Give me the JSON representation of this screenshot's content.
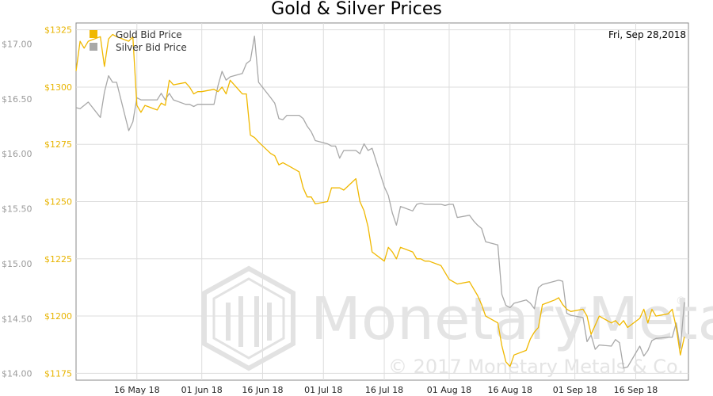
{
  "chart_data": {
    "type": "line",
    "title": "Gold & Silver Prices",
    "date_label": "Fri, Sep 28,2018",
    "x_ticks": [
      "16 May 18",
      "01 Jun 18",
      "16 Jun 18",
      "01 Jul 18",
      "16 Jul 18",
      "01 Aug 18",
      "16 Aug 18",
      "01 Sep 18",
      "16 Sep 18"
    ],
    "x_tick_dates": [
      "2018-05-16",
      "2018-06-01",
      "2018-06-16",
      "2018-07-01",
      "2018-07-16",
      "2018-08-01",
      "2018-08-16",
      "2018-09-01",
      "2018-09-16"
    ],
    "xlim": [
      "2018-05-01",
      "2018-09-29"
    ],
    "ylim_left": [
      1172,
      1328
    ],
    "ylim_right": [
      13.94,
      17.19
    ],
    "y_ticks_left": [
      "$1325",
      "$1300",
      "$1275",
      "$1250",
      "$1225",
      "$1200",
      "$1175"
    ],
    "y_tick_values_left": [
      1325,
      1300,
      1275,
      1250,
      1225,
      1200,
      1175
    ],
    "y_ticks_right": [
      "$17.00",
      "$16.50",
      "$16.00",
      "$15.50",
      "$15.00",
      "$14.50",
      "$14.00"
    ],
    "y_tick_values_right": [
      17.0,
      16.5,
      16.0,
      15.5,
      15.0,
      14.5,
      14.0
    ],
    "grid": true,
    "legend_position": "top-left",
    "watermark": {
      "text": "MonetaryMetals",
      "registered": "®",
      "copyright": "© 2017 Monetary Metals & Co."
    },
    "series": [
      {
        "name": "Gold Bid Price",
        "color": "#f0b800",
        "axis": "left",
        "x": [
          "2018-05-01",
          "2018-05-02",
          "2018-05-03",
          "2018-05-04",
          "2018-05-07",
          "2018-05-08",
          "2018-05-09",
          "2018-05-10",
          "2018-05-11",
          "2018-05-14",
          "2018-05-15",
          "2018-05-16",
          "2018-05-17",
          "2018-05-18",
          "2018-05-21",
          "2018-05-22",
          "2018-05-23",
          "2018-05-24",
          "2018-05-25",
          "2018-05-28",
          "2018-05-29",
          "2018-05-30",
          "2018-05-31",
          "2018-06-01",
          "2018-06-04",
          "2018-06-05",
          "2018-06-06",
          "2018-06-07",
          "2018-06-08",
          "2018-06-11",
          "2018-06-12",
          "2018-06-13",
          "2018-06-14",
          "2018-06-15",
          "2018-06-18",
          "2018-06-19",
          "2018-06-20",
          "2018-06-21",
          "2018-06-22",
          "2018-06-25",
          "2018-06-26",
          "2018-06-27",
          "2018-06-28",
          "2018-06-29",
          "2018-07-02",
          "2018-07-03",
          "2018-07-04",
          "2018-07-05",
          "2018-07-06",
          "2018-07-09",
          "2018-07-10",
          "2018-07-11",
          "2018-07-12",
          "2018-07-13",
          "2018-07-16",
          "2018-07-17",
          "2018-07-18",
          "2018-07-19",
          "2018-07-20",
          "2018-07-23",
          "2018-07-24",
          "2018-07-25",
          "2018-07-26",
          "2018-07-27",
          "2018-07-30",
          "2018-07-31",
          "2018-08-01",
          "2018-08-02",
          "2018-08-03",
          "2018-08-06",
          "2018-08-07",
          "2018-08-08",
          "2018-08-09",
          "2018-08-10",
          "2018-08-13",
          "2018-08-14",
          "2018-08-15",
          "2018-08-16",
          "2018-08-17",
          "2018-08-20",
          "2018-08-21",
          "2018-08-22",
          "2018-08-23",
          "2018-08-24",
          "2018-08-27",
          "2018-08-28",
          "2018-08-29",
          "2018-08-30",
          "2018-08-31",
          "2018-09-03",
          "2018-09-04",
          "2018-09-05",
          "2018-09-06",
          "2018-09-07",
          "2018-09-10",
          "2018-09-11",
          "2018-09-12",
          "2018-09-13",
          "2018-09-14",
          "2018-09-17",
          "2018-09-18",
          "2018-09-19",
          "2018-09-20",
          "2018-09-21",
          "2018-09-24",
          "2018-09-25",
          "2018-09-26",
          "2018-09-27",
          "2018-09-28"
        ],
        "values": [
          1307,
          1320,
          1317,
          1320,
          1322,
          1309,
          1321,
          1323,
          1322,
          1320,
          1322,
          1292,
          1289,
          1292,
          1290,
          1293,
          1292,
          1303,
          1301,
          1302,
          1300,
          1297,
          1298,
          1298,
          1299,
          1298,
          1300,
          1297,
          1303,
          1297,
          1297,
          1279,
          1278,
          1276,
          1271,
          1270,
          1266,
          1267,
          1266,
          1263,
          1256,
          1252,
          1252,
          1249,
          1250,
          1256,
          1256,
          1256,
          1255,
          1260,
          1250,
          1246,
          1239,
          1228,
          1224,
          1230,
          1228,
          1225,
          1230,
          1228,
          1225,
          1225,
          1224,
          1224,
          1222,
          1219,
          1216,
          1215,
          1214,
          1215,
          1212,
          1209,
          1205,
          1200,
          1197,
          1187,
          1180,
          1178,
          1183,
          1185,
          1190,
          1193,
          1195,
          1205,
          1207,
          1208,
          1205,
          1203,
          1202,
          1203,
          1200,
          1192,
          1196,
          1200,
          1197,
          1198,
          1196,
          1198,
          1195,
          1199,
          1203,
          1197,
          1203,
          1200,
          1201,
          1203,
          1195,
          1183,
          1191
        ]
      },
      {
        "name": "Silver Bid Price",
        "color": "#a8a8a8",
        "axis": "right",
        "x": [
          "2018-05-01",
          "2018-05-02",
          "2018-05-03",
          "2018-05-04",
          "2018-05-07",
          "2018-05-08",
          "2018-05-09",
          "2018-05-10",
          "2018-05-11",
          "2018-05-14",
          "2018-05-15",
          "2018-05-16",
          "2018-05-17",
          "2018-05-18",
          "2018-05-21",
          "2018-05-22",
          "2018-05-23",
          "2018-05-24",
          "2018-05-25",
          "2018-05-28",
          "2018-05-29",
          "2018-05-30",
          "2018-05-31",
          "2018-06-01",
          "2018-06-04",
          "2018-06-05",
          "2018-06-06",
          "2018-06-07",
          "2018-06-08",
          "2018-06-11",
          "2018-06-12",
          "2018-06-13",
          "2018-06-14",
          "2018-06-15",
          "2018-06-18",
          "2018-06-19",
          "2018-06-20",
          "2018-06-21",
          "2018-06-22",
          "2018-06-25",
          "2018-06-26",
          "2018-06-27",
          "2018-06-28",
          "2018-06-29",
          "2018-07-02",
          "2018-07-03",
          "2018-07-04",
          "2018-07-05",
          "2018-07-06",
          "2018-07-09",
          "2018-07-10",
          "2018-07-11",
          "2018-07-12",
          "2018-07-13",
          "2018-07-16",
          "2018-07-17",
          "2018-07-18",
          "2018-07-19",
          "2018-07-20",
          "2018-07-23",
          "2018-07-24",
          "2018-07-25",
          "2018-07-26",
          "2018-07-27",
          "2018-07-30",
          "2018-07-31",
          "2018-08-01",
          "2018-08-02",
          "2018-08-03",
          "2018-08-06",
          "2018-08-07",
          "2018-08-08",
          "2018-08-09",
          "2018-08-10",
          "2018-08-13",
          "2018-08-14",
          "2018-08-15",
          "2018-08-16",
          "2018-08-17",
          "2018-08-20",
          "2018-08-21",
          "2018-08-22",
          "2018-08-23",
          "2018-08-24",
          "2018-08-27",
          "2018-08-28",
          "2018-08-29",
          "2018-08-30",
          "2018-08-31",
          "2018-09-03",
          "2018-09-04",
          "2018-09-05",
          "2018-09-06",
          "2018-09-07",
          "2018-09-10",
          "2018-09-11",
          "2018-09-12",
          "2018-09-13",
          "2018-09-14",
          "2018-09-17",
          "2018-09-18",
          "2018-09-19",
          "2018-09-20",
          "2018-09-21",
          "2018-09-24",
          "2018-09-25",
          "2018-09-26",
          "2018-09-27",
          "2018-09-28"
        ],
        "values": [
          16.42,
          16.41,
          16.44,
          16.47,
          16.33,
          16.56,
          16.71,
          16.65,
          16.65,
          16.21,
          16.29,
          16.51,
          16.49,
          16.49,
          16.49,
          16.55,
          16.49,
          16.55,
          16.49,
          16.45,
          16.45,
          16.43,
          16.45,
          16.45,
          16.45,
          16.62,
          16.75,
          16.67,
          16.7,
          16.73,
          16.82,
          16.85,
          17.07,
          16.65,
          16.51,
          16.46,
          16.32,
          16.31,
          16.35,
          16.35,
          16.32,
          16.25,
          16.2,
          16.12,
          16.09,
          16.07,
          16.07,
          15.96,
          16.03,
          16.03,
          16.0,
          16.09,
          16.03,
          16.05,
          15.7,
          15.62,
          15.46,
          15.35,
          15.52,
          15.48,
          15.54,
          15.55,
          15.54,
          15.54,
          15.54,
          15.53,
          15.54,
          15.54,
          15.42,
          15.44,
          15.39,
          15.35,
          15.32,
          15.2,
          15.17,
          14.72,
          14.62,
          14.6,
          14.64,
          14.67,
          14.64,
          14.59,
          14.78,
          14.81,
          14.84,
          14.85,
          14.84,
          14.55,
          14.53,
          14.51,
          14.29,
          14.35,
          14.22,
          14.26,
          14.25,
          14.31,
          14.28,
          14.05,
          14.06,
          14.25,
          14.16,
          14.21,
          14.3,
          14.32,
          14.33,
          14.33,
          14.46,
          14.23,
          14.65
        ]
      }
    ]
  }
}
